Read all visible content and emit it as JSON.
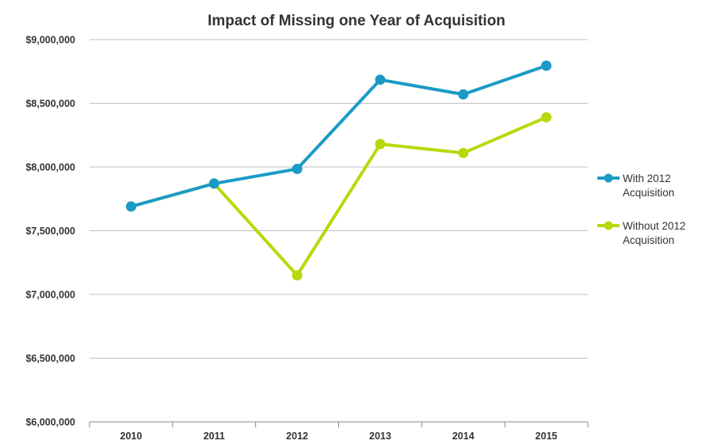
{
  "chart_data": {
    "type": "line",
    "title": "Impact of Missing one Year of Acquisition",
    "categories": [
      "2010",
      "2011",
      "2012",
      "2013",
      "2014",
      "2015"
    ],
    "yticks": [
      "$6,000,000",
      "$6,500,000",
      "$7,000,000",
      "$7,500,000",
      "$8,000,000",
      "$8,500,000",
      "$9,000,000"
    ],
    "ylim": [
      6000000,
      9000000
    ],
    "grid": true,
    "legend_position": "right",
    "series": [
      {
        "name_lines": [
          "With 2012",
          "Acquisition"
        ],
        "color": "#1a9bc6",
        "values": [
          7690000,
          7870000,
          7985000,
          8685000,
          8570000,
          8795000
        ]
      },
      {
        "name_lines": [
          "Without 2012",
          "Acquisition"
        ],
        "color": "#b9d80b",
        "values": [
          7690000,
          7870000,
          7150000,
          8180000,
          8110000,
          8390000
        ]
      }
    ]
  }
}
